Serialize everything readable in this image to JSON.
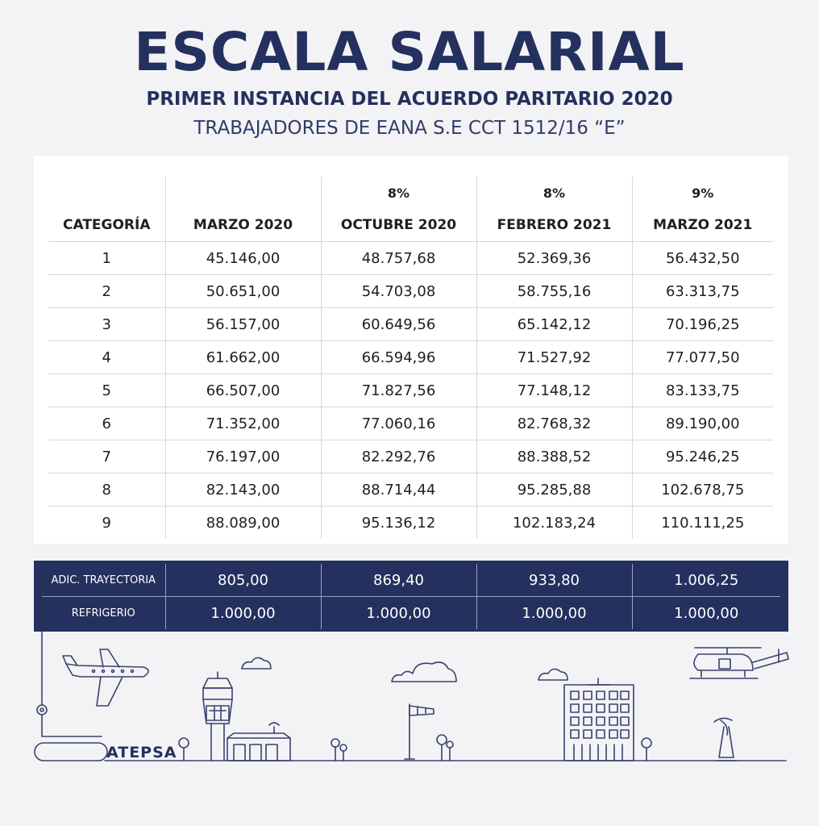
{
  "header": {
    "title": "ESCALA SALARIAL",
    "subtitle": "PRIMER INSTANCIA DEL ACUERDO PARITARIO 2020",
    "subtitle2": "TRABAJADORES DE EANA S.E CCT 1512/16 “E”"
  },
  "table": {
    "percentages": [
      "",
      "",
      "8%",
      "8%",
      "9%"
    ],
    "columns": [
      "CATEGORÍA",
      "MARZO 2020",
      "OCTUBRE 2020",
      "FEBRERO  2021",
      "MARZO  2021"
    ],
    "rows": [
      [
        "1",
        "45.146,00",
        "48.757,68",
        "52.369,36",
        "56.432,50"
      ],
      [
        "2",
        "50.651,00",
        "54.703,08",
        "58.755,16",
        "63.313,75"
      ],
      [
        "3",
        "56.157,00",
        "60.649,56",
        "65.142,12",
        "70.196,25"
      ],
      [
        "4",
        "61.662,00",
        "66.594,96",
        "71.527,92",
        "77.077,50"
      ],
      [
        "5",
        "66.507,00",
        "71.827,56",
        "77.148,12",
        "83.133,75"
      ],
      [
        "6",
        "71.352,00",
        "77.060,16",
        "82.768,32",
        "89.190,00"
      ],
      [
        "7",
        "76.197,00",
        "82.292,76",
        "88.388,52",
        "95.246,25"
      ],
      [
        "8",
        "82.143,00",
        "88.714,44",
        "95.285,88",
        "102.678,75"
      ],
      [
        "9",
        "88.089,00",
        "95.136,12",
        "102.183,24",
        "110.111,25"
      ]
    ]
  },
  "extras": {
    "rows": [
      [
        "ADIC. TRAYECTORIA",
        "805,00",
        "869,40",
        "933,80",
        "1.006,25"
      ],
      [
        "REFRIGERIO",
        "1.000,00",
        "1.000,00",
        "1.000,00",
        "1.000,00"
      ]
    ]
  },
  "footer": {
    "brand": "ATEPSA"
  },
  "colors": {
    "navy": "#24305e",
    "background": "#f3f3f5",
    "line_art": "#3a4170"
  },
  "illustration": {
    "icons": [
      "airplane-icon",
      "control-tower-icon",
      "windsock-icon",
      "building-icon",
      "helicopter-icon",
      "radar-icon",
      "cloud-icon",
      "tree-icon"
    ]
  }
}
